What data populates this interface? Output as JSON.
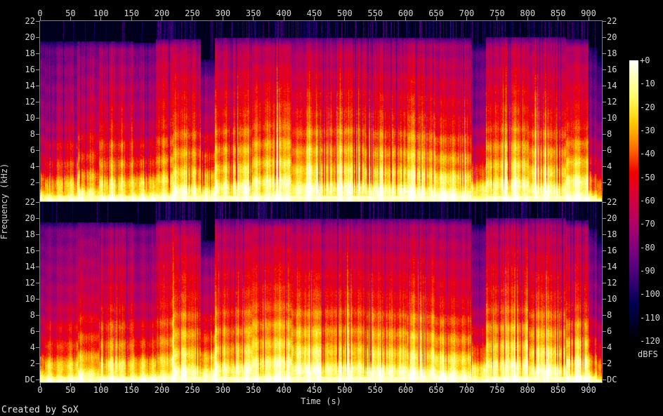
{
  "watermark": "Created by SoX",
  "chart_data": {
    "type": "heatmap",
    "subtype": "audio-spectrogram",
    "title": "",
    "xlabel": "Time (s)",
    "ylabel": "Frequency (kHz)",
    "x_ticks": [
      "0",
      "50",
      "100",
      "150",
      "200",
      "250",
      "300",
      "350",
      "400",
      "450",
      "500",
      "550",
      "600",
      "650",
      "700",
      "750",
      "800",
      "850",
      "900"
    ],
    "x_tick_values_s": [
      0,
      50,
      100,
      150,
      200,
      250,
      300,
      350,
      400,
      450,
      500,
      550,
      600,
      650,
      700,
      750,
      800,
      850,
      900
    ],
    "x_range_s": [
      0,
      922
    ],
    "y_ticks": [
      "22",
      "20",
      "18",
      "16",
      "14",
      "12",
      "10",
      "8",
      "6",
      "4",
      "2"
    ],
    "y_tick_values_khz": [
      22,
      20,
      18,
      16,
      14,
      12,
      10,
      8,
      6,
      4,
      2
    ],
    "y_dc_label": "DC",
    "y_range_khz": [
      0,
      22
    ],
    "channels": 2,
    "grid": false,
    "legend_position": "right-colorbar",
    "colorbar": {
      "label": "dBFS",
      "ticks": [
        "+0",
        "-10",
        "-20",
        "-30",
        "-40",
        "-50",
        "-60",
        "-70",
        "-80",
        "-90",
        "-100",
        "-110",
        "-120"
      ],
      "tick_values_db": [
        0,
        -10,
        -20,
        -30,
        -40,
        -50,
        -60,
        -70,
        -80,
        -90,
        -100,
        -110,
        -120
      ],
      "range_db": [
        0,
        -120
      ],
      "top_color": "#ffffff",
      "mid_color": "#f00000",
      "bottom_color": "#000000"
    },
    "palette_stops": {
      "0.00": "#000000",
      "0.15": "#0d005a",
      "0.30": "#6e0080",
      "0.45": "#be005a",
      "0.60": "#f00000",
      "0.75": "#ffb000",
      "0.90": "#ffff83",
      "1.00": "#ffffff"
    },
    "segments": [
      {
        "t0": 0,
        "t1": 8,
        "bass": 0.78,
        "low": 0.52,
        "mid": 0.38,
        "high": 0.27,
        "cut_khz": 19.8,
        "spike_density": 0.04
      },
      {
        "t0": 8,
        "t1": 27,
        "bass": 0.82,
        "low": 0.58,
        "mid": 0.4,
        "high": 0.29,
        "cut_khz": 19.8,
        "spike_density": 0.05
      },
      {
        "t0": 27,
        "t1": 62,
        "bass": 0.86,
        "low": 0.64,
        "mid": 0.46,
        "high": 0.33,
        "cut_khz": 19.8,
        "spike_density": 0.06
      },
      {
        "t0": 62,
        "t1": 96,
        "bass": 0.86,
        "low": 0.66,
        "mid": 0.5,
        "high": 0.35,
        "cut_khz": 19.8,
        "spike_density": 0.06
      },
      {
        "t0": 96,
        "t1": 152,
        "bass": 0.88,
        "low": 0.7,
        "mid": 0.54,
        "high": 0.38,
        "cut_khz": 19.8,
        "spike_density": 0.08
      },
      {
        "t0": 152,
        "t1": 189,
        "bass": 0.85,
        "low": 0.62,
        "mid": 0.44,
        "high": 0.32,
        "cut_khz": 19.6,
        "spike_density": 0.05
      },
      {
        "t0": 189,
        "t1": 218,
        "bass": 0.9,
        "low": 0.74,
        "mid": 0.6,
        "high": 0.46,
        "cut_khz": 20.0,
        "spike_density": 0.75
      },
      {
        "t0": 218,
        "t1": 263,
        "bass": 0.92,
        "low": 0.76,
        "mid": 0.61,
        "high": 0.44,
        "cut_khz": 20.0,
        "spike_density": 0.55
      },
      {
        "t0": 263,
        "t1": 286,
        "bass": 0.86,
        "low": 0.66,
        "mid": 0.45,
        "high": 0.24,
        "cut_khz": 17.5,
        "spike_density": 0.1
      },
      {
        "t0": 286,
        "t1": 347,
        "bass": 0.92,
        "low": 0.76,
        "mid": 0.6,
        "high": 0.42,
        "cut_khz": 20.2,
        "spike_density": 0.4
      },
      {
        "t0": 347,
        "t1": 412,
        "bass": 0.94,
        "low": 0.8,
        "mid": 0.64,
        "high": 0.44,
        "cut_khz": 20.2,
        "spike_density": 0.45
      },
      {
        "t0": 412,
        "t1": 462,
        "bass": 0.94,
        "low": 0.8,
        "mid": 0.62,
        "high": 0.42,
        "cut_khz": 20.2,
        "spike_density": 0.45
      },
      {
        "t0": 462,
        "t1": 532,
        "bass": 0.93,
        "low": 0.78,
        "mid": 0.62,
        "high": 0.43,
        "cut_khz": 20.2,
        "spike_density": 0.4
      },
      {
        "t0": 532,
        "t1": 602,
        "bass": 0.93,
        "low": 0.78,
        "mid": 0.6,
        "high": 0.42,
        "cut_khz": 20.2,
        "spike_density": 0.4
      },
      {
        "t0": 602,
        "t1": 647,
        "bass": 0.94,
        "low": 0.8,
        "mid": 0.63,
        "high": 0.44,
        "cut_khz": 20.2,
        "spike_density": 0.4
      },
      {
        "t0": 647,
        "t1": 707,
        "bass": 0.92,
        "low": 0.75,
        "mid": 0.57,
        "high": 0.4,
        "cut_khz": 20.2,
        "spike_density": 0.35
      },
      {
        "t0": 707,
        "t1": 731,
        "bass": 0.83,
        "low": 0.58,
        "mid": 0.36,
        "high": 0.26,
        "cut_khz": 19.5,
        "spike_density": 0.15
      },
      {
        "t0": 731,
        "t1": 802,
        "bass": 0.94,
        "low": 0.8,
        "mid": 0.63,
        "high": 0.44,
        "cut_khz": 20.3,
        "spike_density": 0.4
      },
      {
        "t0": 802,
        "t1": 862,
        "bass": 0.94,
        "low": 0.8,
        "mid": 0.62,
        "high": 0.43,
        "cut_khz": 20.3,
        "spike_density": 0.4
      },
      {
        "t0": 862,
        "t1": 899,
        "bass": 0.92,
        "low": 0.76,
        "mid": 0.57,
        "high": 0.4,
        "cut_khz": 20.0,
        "spike_density": 0.3
      },
      {
        "t0": 899,
        "t1": 913,
        "bass": 0.85,
        "low": 0.62,
        "mid": 0.4,
        "high": 0.27,
        "cut_khz": 19.0,
        "spike_density": 0.1
      },
      {
        "t0": 913,
        "t1": 922,
        "bass": 0.74,
        "low": 0.5,
        "mid": 0.32,
        "high": 0.18,
        "cut_khz": 18.0,
        "spike_density": 0.08
      }
    ]
  }
}
